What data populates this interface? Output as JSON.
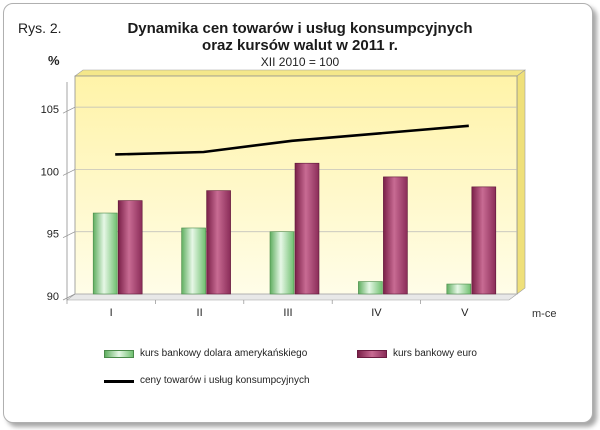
{
  "figure_label": "Rys. 2.",
  "y_unit_label": "%",
  "x_unit_label": "m-ce",
  "chart_data": {
    "type": "bar",
    "title": "Dynamika cen towarów i usług konsumpcyjnych oraz kursów walut w 2011 r.",
    "title_line1": "Dynamika cen towarów i usług konsumpcyjnych",
    "title_line2": "oraz kursów walut w 2011 r.",
    "subtitle": "XII 2010 = 100",
    "categories": [
      "I",
      "II",
      "III",
      "IV",
      "V"
    ],
    "ylim": [
      90,
      107.5
    ],
    "yticks": [
      "90",
      "95",
      "100",
      "105"
    ],
    "series": [
      {
        "name": "kurs bankowy dolara amerykańskiego",
        "type": "bar",
        "values": [
          96.5,
          95.3,
          95.0,
          91.0,
          90.8
        ],
        "color": "#8fd08f"
      },
      {
        "name": "kurs bankowy euro",
        "type": "bar",
        "values": [
          97.5,
          98.3,
          100.5,
          99.4,
          98.6
        ],
        "color": "#a0406a"
      },
      {
        "name": "ceny towarów i usług konsumpcyjnych",
        "type": "line",
        "values": [
          101.2,
          101.4,
          102.3,
          102.9,
          103.5
        ],
        "color": "#000000"
      }
    ],
    "grid": true,
    "legend_position": "bottom"
  }
}
